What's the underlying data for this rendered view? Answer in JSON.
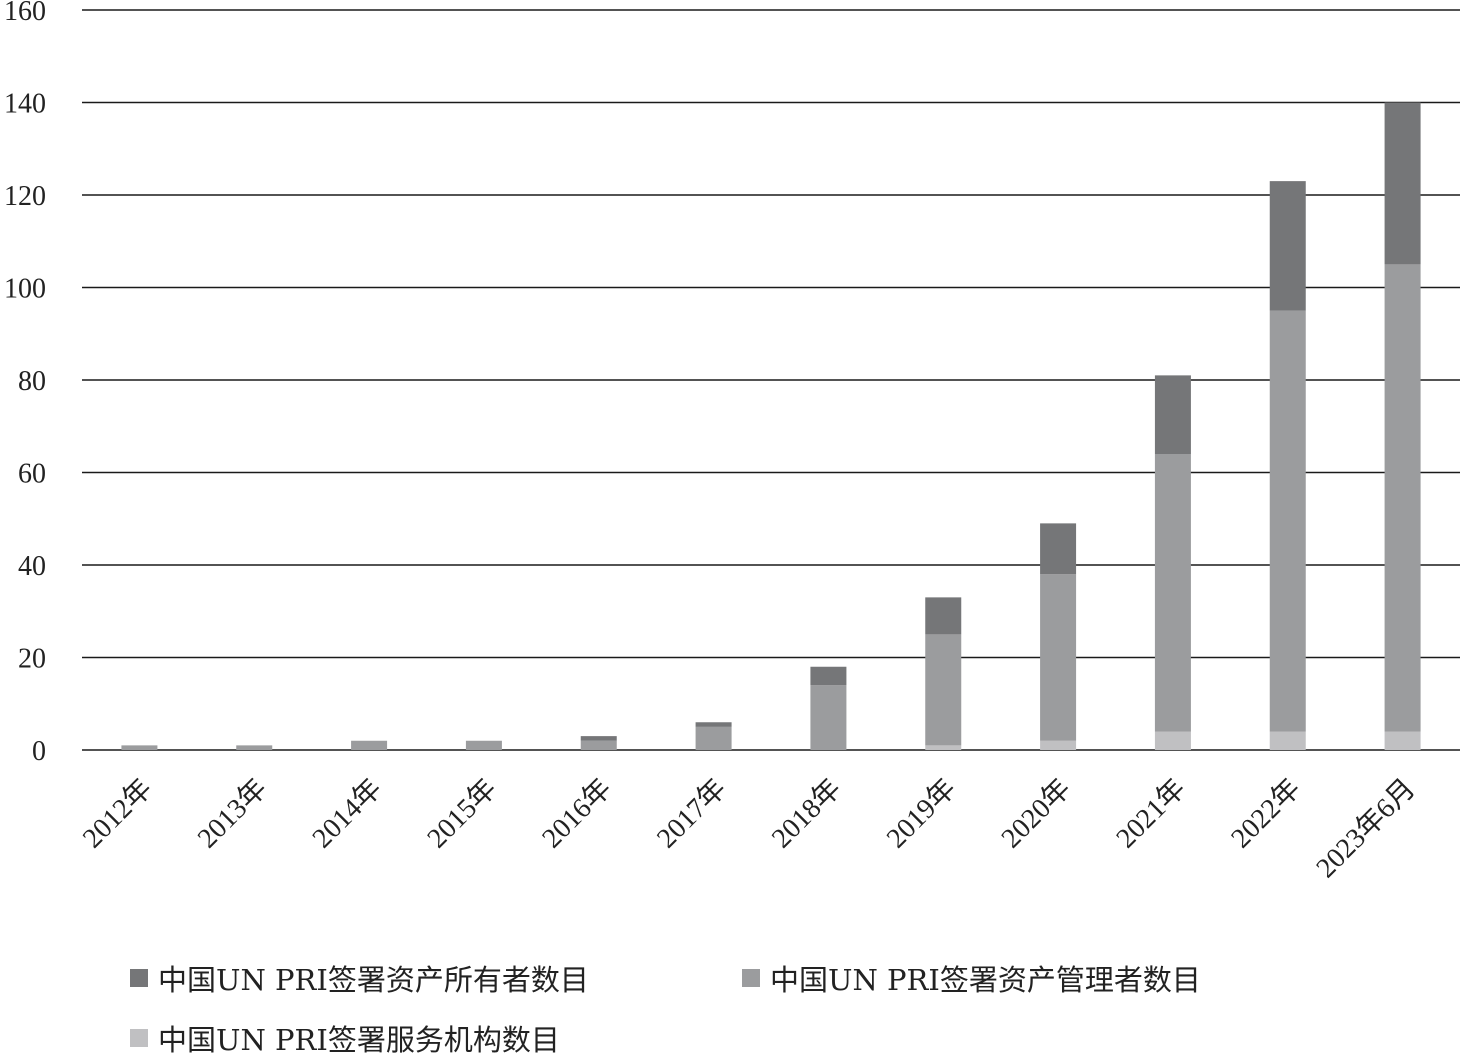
{
  "chart_data": {
    "type": "bar",
    "stacked": true,
    "title": "",
    "xlabel": "",
    "ylabel": "",
    "categories": [
      "2012年",
      "2013年",
      "2014年",
      "2015年",
      "2016年",
      "2017年",
      "2018年",
      "2019年",
      "2020年",
      "2021年",
      "2022年",
      "2023年6月"
    ],
    "ylim": [
      0,
      160
    ],
    "yticks": [
      0,
      20,
      40,
      60,
      80,
      100,
      120,
      140,
      160
    ],
    "grid": true,
    "legend_position": "bottom",
    "series": [
      {
        "name": "中国UN PRI签署服务机构数目",
        "color": "#c0c0c2",
        "values": [
          0,
          0,
          0,
          0,
          0,
          0,
          0,
          1,
          2,
          4,
          4,
          4
        ]
      },
      {
        "name": "中国UN PRI签署资产管理者数目",
        "color": "#9b9c9e",
        "values": [
          1,
          1,
          2,
          2,
          2,
          5,
          14,
          24,
          36,
          60,
          91,
          101
        ]
      },
      {
        "name": "中国UN PRI签署资产所有者数目",
        "color": "#757678",
        "values": [
          0,
          0,
          0,
          0,
          1,
          1,
          4,
          8,
          11,
          17,
          28,
          35
        ]
      }
    ]
  },
  "legend": {
    "owners": "中国UN PRI签署资产所有者数目",
    "managers": "中国UN PRI签署资产管理者数目",
    "services": "中国UN PRI签署服务机构数目"
  }
}
